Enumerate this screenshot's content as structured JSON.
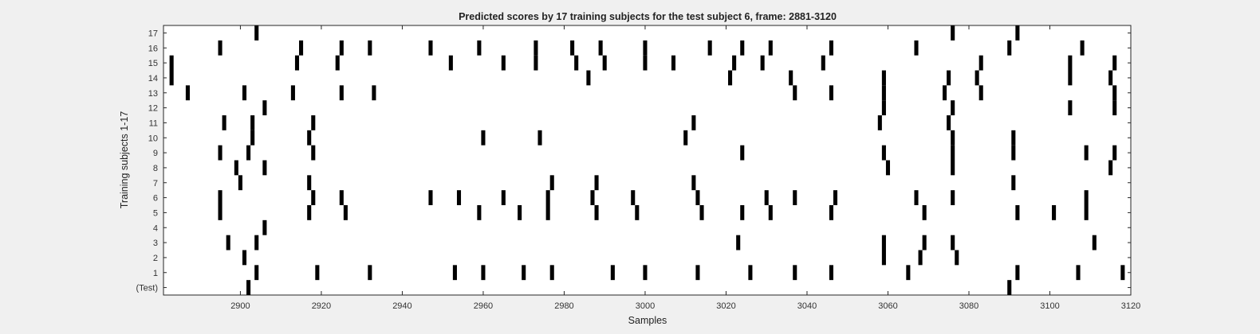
{
  "chart_data": {
    "type": "scatter",
    "title": "Predicted scores by 17 training subjects for the test subject 6, frame: 2881-3120",
    "xlabel": "Samples",
    "ylabel": "Training subjects 1-17",
    "xlim": [
      2881,
      3120
    ],
    "x_ticks": [
      2900,
      2920,
      2940,
      2960,
      2980,
      3000,
      3020,
      3040,
      3060,
      3080,
      3100,
      3120
    ],
    "y_tick_labels": [
      "(Test)",
      "1",
      "2",
      "3",
      "4",
      "5",
      "6",
      "7",
      "8",
      "9",
      "10",
      "11",
      "12",
      "13",
      "14",
      "15",
      "16",
      "17"
    ],
    "grid": false,
    "legend": "none",
    "marker_color": "#000000",
    "background_color": "#ffffff",
    "figure_color": "#f0f0f0",
    "series": [
      {
        "row": 0,
        "x": [
          2902,
          3090
        ]
      },
      {
        "row": 1,
        "x": [
          2904,
          2919,
          2932,
          2953,
          2960,
          2970,
          2977,
          2992,
          3000,
          3013,
          3026,
          3037,
          3046,
          3065,
          3092,
          3107,
          3118
        ]
      },
      {
        "row": 2,
        "x": [
          2901,
          3059,
          3068,
          3077
        ]
      },
      {
        "row": 3,
        "x": [
          2897,
          2904,
          3023,
          3059,
          3069,
          3076,
          3111
        ]
      },
      {
        "row": 4,
        "x": [
          2906
        ]
      },
      {
        "row": 5,
        "x": [
          2895,
          2917,
          2926,
          2959,
          2969,
          2976,
          2988,
          2998,
          3014,
          3024,
          3031,
          3046,
          3069,
          3092,
          3101,
          3109
        ]
      },
      {
        "row": 6,
        "x": [
          2895,
          2918,
          2925,
          2947,
          2954,
          2965,
          2976,
          2987,
          2997,
          3013,
          3030,
          3037,
          3047,
          3067,
          3076,
          3109
        ]
      },
      {
        "row": 7,
        "x": [
          2900,
          2917,
          2977,
          2988,
          3012,
          3091
        ]
      },
      {
        "row": 8,
        "x": [
          2899,
          2906,
          3060,
          3076,
          3115
        ]
      },
      {
        "row": 9,
        "x": [
          2895,
          2902,
          2918,
          3024,
          3059,
          3076,
          3091,
          3109,
          3116
        ]
      },
      {
        "row": 10,
        "x": [
          2903,
          2917,
          2960,
          2974,
          3010,
          3076,
          3091
        ]
      },
      {
        "row": 11,
        "x": [
          2896,
          2903,
          2918,
          3012,
          3058,
          3075
        ]
      },
      {
        "row": 12,
        "x": [
          2906,
          3059,
          3076,
          3105,
          3116
        ]
      },
      {
        "row": 13,
        "x": [
          2887,
          2901,
          2913,
          2925,
          2933,
          3037,
          3046,
          3059,
          3074,
          3083,
          3116
        ]
      },
      {
        "row": 14,
        "x": [
          2883,
          2986,
          3021,
          3036,
          3059,
          3075,
          3082,
          3105,
          3115
        ]
      },
      {
        "row": 15,
        "x": [
          2883,
          2914,
          2924,
          2952,
          2965,
          2973,
          2983,
          2990,
          3000,
          3007,
          3022,
          3029,
          3044,
          3083,
          3105,
          3116
        ]
      },
      {
        "row": 16,
        "x": [
          2895,
          2915,
          2925,
          2932,
          2947,
          2959,
          2973,
          2982,
          2989,
          3000,
          3016,
          3024,
          3031,
          3046,
          3067,
          3090,
          3108
        ]
      },
      {
        "row": 17,
        "x": [
          2904,
          3076,
          3092
        ]
      }
    ]
  }
}
